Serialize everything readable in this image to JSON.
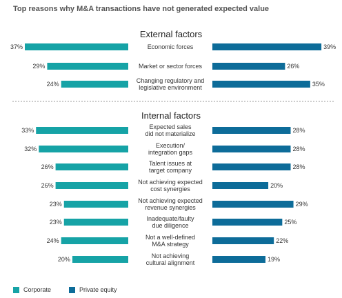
{
  "title": "Top reasons why M&A transactions have not generated expected value",
  "colors": {
    "corporate": "#16a3a6",
    "private_equity": "#0d6c99",
    "divider": "#9a9a9a"
  },
  "legend": {
    "corporate": "Corporate",
    "private_equity": "Private equity"
  },
  "chart_data": {
    "type": "bar",
    "orientation": "horizontal-butterfly",
    "series": [
      {
        "name": "Corporate",
        "side": "left"
      },
      {
        "name": "Private equity",
        "side": "right"
      }
    ],
    "xlim": [
      0,
      40
    ],
    "value_unit": "%",
    "grid": false,
    "legend_position": "bottom-left",
    "sections": [
      {
        "title": "External factors",
        "rows": [
          {
            "label": [
              "Economic forces"
            ],
            "corporate": 37,
            "private_equity": 39
          },
          {
            "label": [
              "Market or sector forces"
            ],
            "corporate": 29,
            "private_equity": 26
          },
          {
            "label": [
              "Changing regulatory and",
              "legislative environment"
            ],
            "corporate": 24,
            "private_equity": 35
          }
        ]
      },
      {
        "title": "Internal factors",
        "rows": [
          {
            "label": [
              "Expected sales",
              "did not materialize"
            ],
            "corporate": 33,
            "private_equity": 28
          },
          {
            "label": [
              "Execution/",
              "integration gaps"
            ],
            "corporate": 32,
            "private_equity": 28
          },
          {
            "label": [
              "Talent issues at",
              "target company"
            ],
            "corporate": 26,
            "private_equity": 28
          },
          {
            "label": [
              "Not achieving expected",
              "cost synergies"
            ],
            "corporate": 26,
            "private_equity": 20
          },
          {
            "label": [
              "Not achieving expected",
              "revenue synergies"
            ],
            "corporate": 23,
            "private_equity": 29
          },
          {
            "label": [
              "Inadequate/faulty",
              "due diligence"
            ],
            "corporate": 23,
            "private_equity": 25
          },
          {
            "label": [
              "Not a well-defined",
              "M&A strategy"
            ],
            "corporate": 24,
            "private_equity": 22
          },
          {
            "label": [
              "Not achieving",
              "cultural alignment"
            ],
            "corporate": 20,
            "private_equity": 19
          }
        ]
      }
    ]
  }
}
